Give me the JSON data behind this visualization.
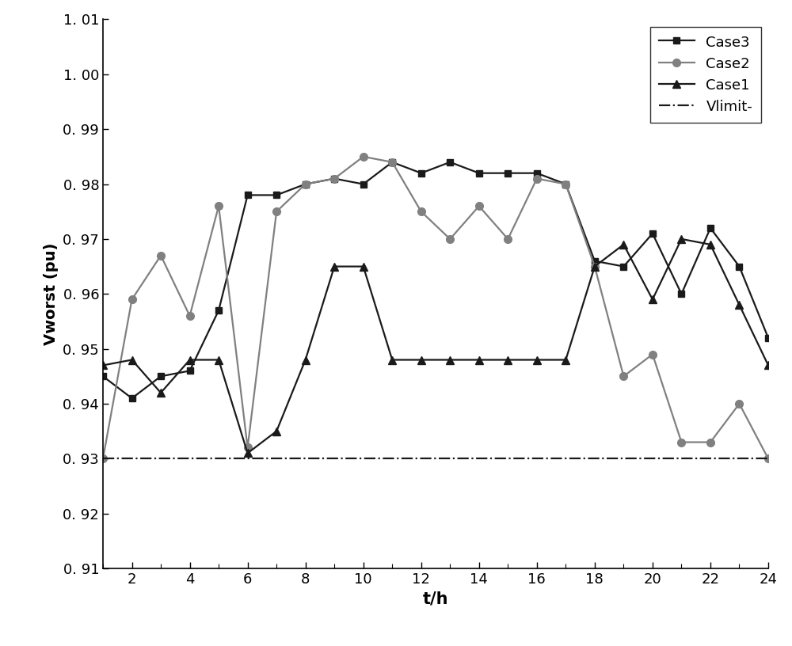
{
  "t": [
    1,
    2,
    3,
    4,
    5,
    6,
    7,
    8,
    9,
    10,
    11,
    12,
    13,
    14,
    15,
    16,
    17,
    18,
    19,
    20,
    21,
    22,
    23,
    24
  ],
  "case3": [
    0.945,
    0.941,
    0.945,
    0.946,
    0.957,
    0.978,
    0.978,
    0.98,
    0.981,
    0.98,
    0.984,
    0.982,
    0.984,
    0.982,
    0.982,
    0.982,
    0.98,
    0.966,
    0.965,
    0.971,
    0.96,
    0.972,
    0.965,
    0.952
  ],
  "case2": [
    0.93,
    0.959,
    0.967,
    0.956,
    0.976,
    0.932,
    0.975,
    0.98,
    0.981,
    0.985,
    0.984,
    0.975,
    0.97,
    0.976,
    0.97,
    0.981,
    0.98,
    0.965,
    0.945,
    0.949,
    0.933,
    0.933,
    0.94,
    0.93
  ],
  "case1": [
    0.947,
    0.948,
    0.942,
    0.948,
    0.948,
    0.931,
    0.935,
    0.948,
    0.965,
    0.965,
    0.948,
    0.948,
    0.948,
    0.948,
    0.948,
    0.948,
    0.948,
    0.965,
    0.969,
    0.959,
    0.97,
    0.969,
    0.958,
    0.947
  ],
  "vlimit": 0.93,
  "ylabel": "Vworst (pu)",
  "xlabel": "t/h",
  "ylim": [
    0.91,
    1.01
  ],
  "ytick_vals": [
    0.91,
    0.92,
    0.93,
    0.94,
    0.95,
    0.96,
    0.97,
    0.98,
    0.99,
    1.0,
    1.01
  ],
  "ytick_labels": [
    "0. 91",
    "0. 92",
    "0. 93",
    "0. 94",
    "0. 95",
    "0. 96",
    "0. 97",
    "0. 98",
    "0. 99",
    "1. 00",
    "1. 01"
  ],
  "xtick_major": [
    2,
    4,
    6,
    8,
    10,
    12,
    14,
    16,
    18,
    20,
    22,
    24
  ],
  "case3_color": "#1a1a1a",
  "case2_color": "#808080",
  "case1_color": "#1a1a1a",
  "vlimit_color": "#1a1a1a",
  "legend_labels": [
    "Case3",
    "Case2",
    "Case1",
    "Vlimit-"
  ]
}
